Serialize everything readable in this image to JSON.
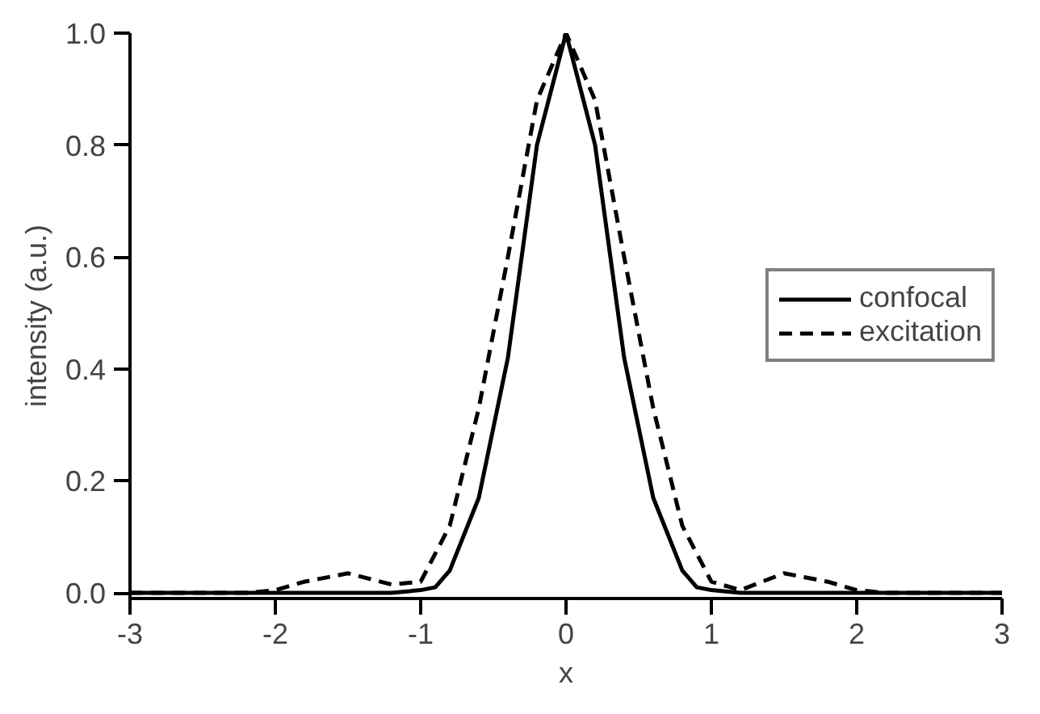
{
  "chart_data": {
    "type": "line",
    "xlabel": "x",
    "ylabel": "intensity (a.u.)",
    "xlim": [
      -3,
      3
    ],
    "xticks": [
      -3,
      -2,
      -1,
      0,
      1,
      2,
      3
    ],
    "ylim": [
      -0.01,
      1.0
    ],
    "yticks": [
      {
        "value": 0,
        "label": "0.0"
      },
      0.2,
      0.4,
      0.6,
      0.8,
      {
        "value": 1,
        "label": "1.0"
      }
    ],
    "grid": false,
    "legend": "right",
    "marker": "none",
    "series": [
      {
        "name": "confocal",
        "color": "#000000",
        "line_style": "solid",
        "x": [
          -3,
          -2,
          -1.2,
          -1.0,
          -0.9,
          -0.8,
          -0.6,
          -0.4,
          -0.2,
          0,
          0.2,
          0.4,
          0.6,
          0.8,
          0.9,
          1.0,
          1.2,
          2,
          3
        ],
        "values": [
          0,
          0,
          0,
          0.005,
          0.01,
          0.04,
          0.17,
          0.42,
          0.8,
          1.0,
          0.8,
          0.42,
          0.17,
          0.04,
          0.01,
          0.005,
          0,
          0,
          0
        ]
      },
      {
        "name": "excitation",
        "color": "#000000",
        "line_style": "dashed",
        "x": [
          -3,
          -2.2,
          -2,
          -1.8,
          -1.5,
          -1.2,
          -1.0,
          -0.8,
          -0.6,
          -0.4,
          -0.2,
          0,
          0.2,
          0.4,
          0.6,
          0.8,
          1.0,
          1.2,
          1.5,
          1.8,
          2,
          2.2,
          3
        ],
        "values": [
          0,
          0,
          0.005,
          0.02,
          0.035,
          0.015,
          0.02,
          0.12,
          0.33,
          0.6,
          0.88,
          1.0,
          0.88,
          0.6,
          0.33,
          0.12,
          0.02,
          0.005,
          0.035,
          0.02,
          0.005,
          0,
          0
        ]
      }
    ]
  }
}
